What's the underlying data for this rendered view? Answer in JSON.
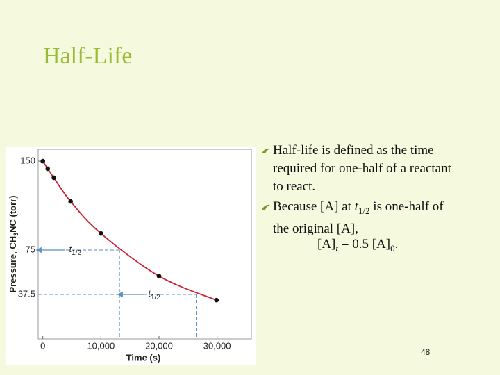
{
  "title": "Half-Life",
  "bullets": [
    [
      "Half-life is defined as the time required for one-half of a reactant to react."
    ],
    [
      "Because [A] at ",
      "t",
      "1/2",
      " is one-half of the original [A],"
    ]
  ],
  "equation": [
    "[A]",
    "t",
    " = 0.5 [A]",
    "0",
    "."
  ],
  "page_number": "48",
  "chart_data": {
    "type": "line",
    "xlabel": "Time (s)",
    "ylabel": [
      "Pressure, CH",
      "3",
      "NC (torr)"
    ],
    "x": [
      0,
      840,
      1900,
      4780,
      10000,
      20000,
      29900
    ],
    "series": [
      {
        "color": "#cc2233",
        "values": [
          150,
          143.6,
          136,
          116,
          89,
          53,
          32.7
        ]
      }
    ],
    "xlim": [
      -800,
      35900
    ],
    "ylim": [
      0,
      160
    ],
    "xticks": [
      0,
      {
        "value": 10000,
        "label": "10,000"
      },
      {
        "value": 20000,
        "label": "20,000"
      },
      {
        "value": 30000,
        "label": "30,000"
      }
    ],
    "yticks": [
      37.5,
      75,
      150
    ],
    "annotations": [
      {
        "x": 13200,
        "y": 75,
        "label": "t",
        "sub": "1/2"
      },
      {
        "x": 26400,
        "y": 37.5,
        "label": "t",
        "sub": "1/2"
      }
    ]
  }
}
